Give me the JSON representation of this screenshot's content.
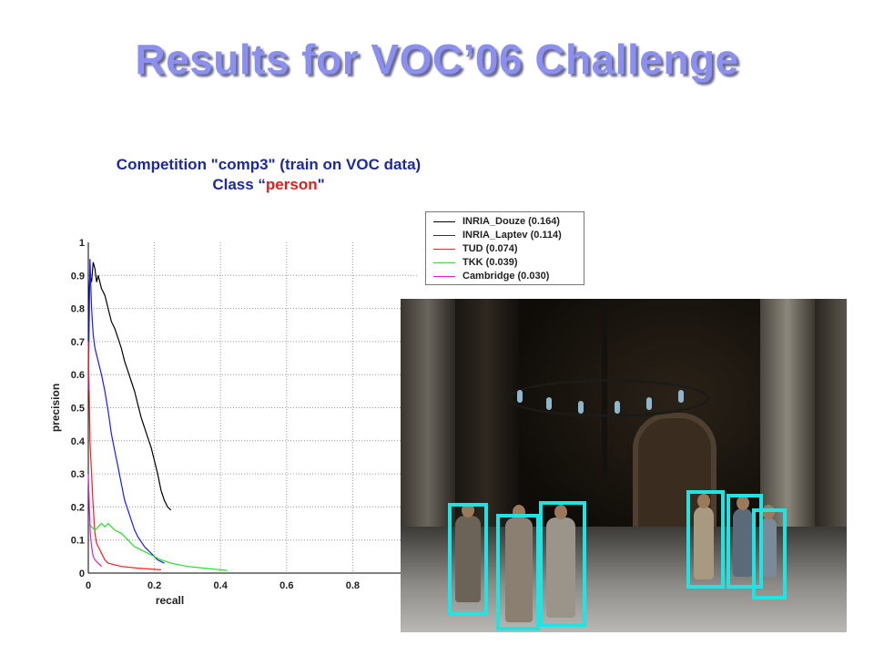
{
  "slide": {
    "title": "Results for VOC’06 Challenge"
  },
  "chart_data": {
    "type": "line",
    "title_line1": "Competition \"comp3\" (train on VOC data)",
    "title_line2_prefix": "Class “",
    "title_line2_class": "person",
    "title_line2_suffix": "\"",
    "xlabel": "recall",
    "ylabel": "precision",
    "xlim": [
      0,
      1
    ],
    "ylim": [
      0,
      1
    ],
    "x_ticks": [
      "0",
      "0.2",
      "0.4",
      "0.6",
      "0.8"
    ],
    "y_ticks": [
      "0",
      "0.1",
      "0.2",
      "0.3",
      "0.4",
      "0.5",
      "0.6",
      "0.7",
      "0.8",
      "0.9",
      "1"
    ],
    "grid": true,
    "legend_position": "top-right",
    "series": [
      {
        "name": "INRIA_Douze (0.164)",
        "color": "#000000",
        "points": [
          [
            0.0,
            0.8
          ],
          [
            0.005,
            0.9
          ],
          [
            0.01,
            0.88
          ],
          [
            0.015,
            0.94
          ],
          [
            0.02,
            0.92
          ],
          [
            0.025,
            0.88
          ],
          [
            0.03,
            0.9
          ],
          [
            0.04,
            0.86
          ],
          [
            0.05,
            0.84
          ],
          [
            0.06,
            0.8
          ],
          [
            0.07,
            0.76
          ],
          [
            0.08,
            0.74
          ],
          [
            0.09,
            0.71
          ],
          [
            0.1,
            0.68
          ],
          [
            0.11,
            0.64
          ],
          [
            0.12,
            0.61
          ],
          [
            0.13,
            0.58
          ],
          [
            0.14,
            0.55
          ],
          [
            0.15,
            0.51
          ],
          [
            0.16,
            0.47
          ],
          [
            0.17,
            0.44
          ],
          [
            0.18,
            0.41
          ],
          [
            0.19,
            0.38
          ],
          [
            0.2,
            0.34
          ],
          [
            0.21,
            0.3
          ],
          [
            0.22,
            0.25
          ],
          [
            0.23,
            0.22
          ],
          [
            0.24,
            0.2
          ],
          [
            0.25,
            0.19
          ]
        ]
      },
      {
        "name": "INRIA_Laptev (0.114)",
        "color": "#1a1aff",
        "points": [
          [
            0.0,
            0.55
          ],
          [
            0.005,
            0.95
          ],
          [
            0.01,
            0.8
          ],
          [
            0.015,
            0.72
          ],
          [
            0.02,
            0.68
          ],
          [
            0.03,
            0.64
          ],
          [
            0.04,
            0.6
          ],
          [
            0.05,
            0.55
          ],
          [
            0.06,
            0.49
          ],
          [
            0.07,
            0.42
          ],
          [
            0.08,
            0.37
          ],
          [
            0.09,
            0.32
          ],
          [
            0.1,
            0.27
          ],
          [
            0.11,
            0.22
          ],
          [
            0.12,
            0.19
          ],
          [
            0.13,
            0.16
          ],
          [
            0.14,
            0.13
          ],
          [
            0.15,
            0.11
          ],
          [
            0.17,
            0.08
          ],
          [
            0.19,
            0.06
          ],
          [
            0.21,
            0.04
          ],
          [
            0.23,
            0.03
          ]
        ]
      },
      {
        "name": "TUD (0.074)",
        "color": "#ff1a1a",
        "points": [
          [
            0.0,
            0.7
          ],
          [
            0.005,
            0.4
          ],
          [
            0.01,
            0.3
          ],
          [
            0.015,
            0.2
          ],
          [
            0.02,
            0.12
          ],
          [
            0.025,
            0.09
          ],
          [
            0.03,
            0.08
          ],
          [
            0.04,
            0.06
          ],
          [
            0.05,
            0.04
          ],
          [
            0.06,
            0.03
          ],
          [
            0.08,
            0.025
          ],
          [
            0.1,
            0.02
          ],
          [
            0.15,
            0.015
          ],
          [
            0.22,
            0.01
          ]
        ]
      },
      {
        "name": "TKK (0.039)",
        "color": "#22e022",
        "points": [
          [
            0.0,
            0.15
          ],
          [
            0.01,
            0.14
          ],
          [
            0.02,
            0.13
          ],
          [
            0.03,
            0.14
          ],
          [
            0.04,
            0.15
          ],
          [
            0.05,
            0.14
          ],
          [
            0.06,
            0.15
          ],
          [
            0.07,
            0.14
          ],
          [
            0.08,
            0.13
          ],
          [
            0.1,
            0.12
          ],
          [
            0.12,
            0.1
          ],
          [
            0.14,
            0.08
          ],
          [
            0.16,
            0.07
          ],
          [
            0.18,
            0.06
          ],
          [
            0.2,
            0.05
          ],
          [
            0.22,
            0.04
          ],
          [
            0.25,
            0.03
          ],
          [
            0.3,
            0.02
          ],
          [
            0.35,
            0.015
          ],
          [
            0.4,
            0.01
          ],
          [
            0.42,
            0.008
          ]
        ]
      },
      {
        "name": "Cambridge (0.030)",
        "color": "#e01ae0",
        "points": [
          [
            0.0,
            0.3
          ],
          [
            0.003,
            0.2
          ],
          [
            0.006,
            0.12
          ],
          [
            0.01,
            0.08
          ],
          [
            0.015,
            0.05
          ],
          [
            0.02,
            0.04
          ],
          [
            0.03,
            0.03
          ],
          [
            0.04,
            0.02
          ]
        ]
      }
    ]
  }
}
